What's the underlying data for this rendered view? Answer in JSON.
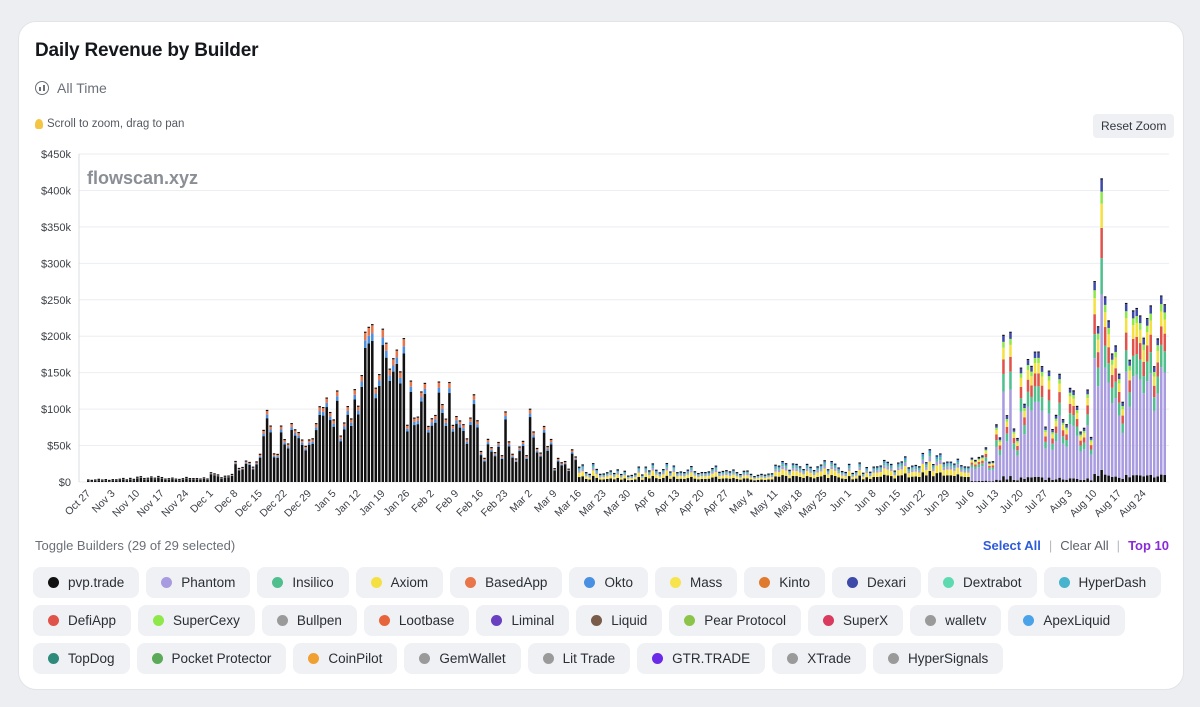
{
  "title": "Daily Revenue by Builder",
  "range_label": "All Time",
  "hint": "Scroll to zoom, drag to pan",
  "reset_zoom": "Reset Zoom",
  "watermark": "flowscan.xyz",
  "toggle_label": "Toggle Builders (29 of 29 selected)",
  "actions": {
    "select_all": "Select All",
    "clear_all": "Clear All",
    "top10": "Top 10",
    "sep": "|"
  },
  "colors": {
    "accent_blue": "#2f5bd8",
    "accent_purple": "#8a2bd6"
  },
  "chart_data": {
    "type": "bar",
    "stacked": true,
    "title": "Daily Revenue by Builder",
    "ylim": [
      0,
      450000
    ],
    "y_ticks": [
      "$0",
      "$50k",
      "$100k",
      "$150k",
      "$200k",
      "$250k",
      "$300k",
      "$350k",
      "$400k",
      "$450k"
    ],
    "x_tick_labels": [
      "Oct 27",
      "Nov 3",
      "Nov 10",
      "Nov 17",
      "Nov 24",
      "Dec 1",
      "Dec 8",
      "Dec 15",
      "Dec 22",
      "Dec 29",
      "Jan 5",
      "Jan 12",
      "Jan 19",
      "Jan 26",
      "Feb 2",
      "Feb 9",
      "Feb 16",
      "Feb 23",
      "Mar 2",
      "Mar 9",
      "Mar 16",
      "Mar 23",
      "Mar 30",
      "Apr 6",
      "Apr 13",
      "Apr 20",
      "Apr 27",
      "May 4",
      "May 11",
      "May 18",
      "May 25",
      "Jun 1",
      "Jun 8",
      "Jun 15",
      "Jun 22",
      "Jun 29",
      "Jul 6",
      "Jul 13",
      "Jul 20",
      "Jul 27",
      "Aug 3",
      "Aug 10",
      "Aug 17",
      "Aug 24"
    ],
    "grid": true,
    "weekly_totals": [
      2000,
      3000,
      5000,
      4000,
      4000,
      8000,
      20000,
      60000,
      80000,
      85000,
      95000,
      110000,
      150000,
      120000,
      115000,
      90000,
      45000,
      40000,
      55000,
      25000,
      15000,
      14000,
      12000,
      18000,
      15000,
      14000,
      12000,
      10000,
      18000,
      22000,
      20000,
      18000,
      20000,
      25000,
      30000,
      22000,
      40000,
      90000,
      140000,
      110000,
      100000,
      250000,
      180000,
      210000
    ],
    "weekly_peaks": [
      3000,
      4000,
      7000,
      6000,
      6000,
      12000,
      30000,
      110000,
      110000,
      110000,
      115000,
      215000,
      165000,
      145000,
      145000,
      120000,
      75000,
      105000,
      105000,
      45000,
      25000,
      20000,
      20000,
      40000,
      25000,
      22000,
      18000,
      15000,
      28000,
      30000,
      30000,
      28000,
      32000,
      38000,
      45000,
      35000,
      75000,
      220000,
      185000,
      170000,
      165000,
      415000,
      275000,
      275000
    ],
    "series": [
      {
        "name": "pvp.trade",
        "color": "#111111"
      },
      {
        "name": "Phantom",
        "color": "#a99be0"
      },
      {
        "name": "Insilico",
        "color": "#4fc08d"
      },
      {
        "name": "Axiom",
        "color": "#f5e042"
      },
      {
        "name": "BasedApp",
        "color": "#e8764a"
      },
      {
        "name": "Okto",
        "color": "#4a90e2"
      },
      {
        "name": "Mass",
        "color": "#f7e34b"
      },
      {
        "name": "Kinto",
        "color": "#e07a2e"
      },
      {
        "name": "Dexari",
        "color": "#3d4aa8"
      },
      {
        "name": "Dextrabot",
        "color": "#5fd9b0"
      },
      {
        "name": "HyperDash",
        "color": "#47b3cc"
      },
      {
        "name": "DefiApp",
        "color": "#e0534a"
      },
      {
        "name": "SuperCexy",
        "color": "#8ee84a"
      },
      {
        "name": "Bullpen",
        "color": "#9a9a9a"
      },
      {
        "name": "Lootbase",
        "color": "#e8643a"
      },
      {
        "name": "Liminal",
        "color": "#6a3fc0"
      },
      {
        "name": "Liquid",
        "color": "#7a5a48"
      },
      {
        "name": "Pear Protocol",
        "color": "#8cc44a"
      },
      {
        "name": "SuperX",
        "color": "#d93a5e"
      },
      {
        "name": "walletv",
        "color": "#9a9a9a"
      },
      {
        "name": "ApexLiquid",
        "color": "#4aa3e8"
      },
      {
        "name": "TopDog",
        "color": "#2e8a7a"
      },
      {
        "name": "Pocket Protector",
        "color": "#5aaa5a"
      },
      {
        "name": "CoinPilot",
        "color": "#f0a030"
      },
      {
        "name": "GemWallet",
        "color": "#9a9a9a"
      },
      {
        "name": "Lit Trade",
        "color": "#9a9a9a"
      },
      {
        "name": "GTR.TRADE",
        "color": "#6a2ae8"
      },
      {
        "name": "XTrade",
        "color": "#9a9a9a"
      },
      {
        "name": "HyperSignals",
        "color": "#9a9a9a"
      }
    ]
  }
}
